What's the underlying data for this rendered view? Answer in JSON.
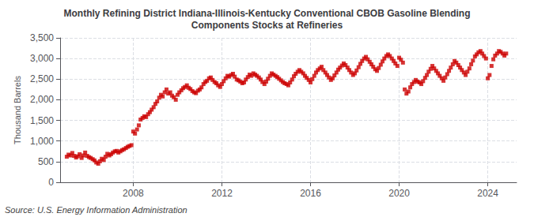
{
  "chart_data": {
    "type": "scatter",
    "title": "Monthly Refining District Indiana-Illinois-Kentucky Conventional CBOB Gasoline Blending\nComponents Stocks at Refineries",
    "ylabel": "Thousand Barrels",
    "annotations": [
      "Source: U.S. Energy Information Administration"
    ],
    "color": "#cc0000",
    "marker": "square",
    "grid": true,
    "xlim": [
      2004.7,
      2025.3
    ],
    "xticks": [
      2008,
      2012,
      2016,
      2020,
      2024
    ],
    "ylim": [
      0,
      3500
    ],
    "yticks": [
      0,
      500,
      {
        "value": 1000,
        "label": "1,000"
      },
      {
        "value": 1500,
        "label": "1,500"
      },
      {
        "value": 2000,
        "label": "2,000"
      },
      {
        "value": 2500,
        "label": "2,500"
      },
      {
        "value": 3000,
        "label": "3,000"
      },
      {
        "value": 3500,
        "label": "3,500"
      }
    ],
    "x": [
      2005.0,
      2005.08,
      2005.17,
      2005.25,
      2005.33,
      2005.42,
      2005.5,
      2005.58,
      2005.67,
      2005.75,
      2005.83,
      2005.92,
      2006.0,
      2006.08,
      2006.17,
      2006.25,
      2006.33,
      2006.42,
      2006.5,
      2006.58,
      2006.67,
      2006.75,
      2006.83,
      2006.92,
      2007.0,
      2007.08,
      2007.17,
      2007.25,
      2007.33,
      2007.42,
      2007.5,
      2007.58,
      2007.67,
      2007.75,
      2007.83,
      2007.92,
      2008.0,
      2008.08,
      2008.17,
      2008.25,
      2008.33,
      2008.42,
      2008.5,
      2008.58,
      2008.67,
      2008.75,
      2008.83,
      2008.92,
      2009.0,
      2009.08,
      2009.17,
      2009.25,
      2009.33,
      2009.42,
      2009.5,
      2009.58,
      2009.67,
      2009.75,
      2009.83,
      2009.92,
      2010.0,
      2010.08,
      2010.17,
      2010.25,
      2010.33,
      2010.42,
      2010.5,
      2010.58,
      2010.67,
      2010.75,
      2010.83,
      2010.92,
      2011.0,
      2011.08,
      2011.17,
      2011.25,
      2011.33,
      2011.42,
      2011.5,
      2011.58,
      2011.67,
      2011.75,
      2011.83,
      2011.92,
      2012.0,
      2012.08,
      2012.17,
      2012.25,
      2012.33,
      2012.42,
      2012.5,
      2012.58,
      2012.67,
      2012.75,
      2012.83,
      2012.92,
      2013.0,
      2013.08,
      2013.17,
      2013.25,
      2013.33,
      2013.42,
      2013.5,
      2013.58,
      2013.67,
      2013.75,
      2013.83,
      2013.92,
      2014.0,
      2014.08,
      2014.17,
      2014.25,
      2014.33,
      2014.42,
      2014.5,
      2014.58,
      2014.67,
      2014.75,
      2014.83,
      2014.92,
      2015.0,
      2015.08,
      2015.17,
      2015.25,
      2015.33,
      2015.42,
      2015.5,
      2015.58,
      2015.67,
      2015.75,
      2015.83,
      2015.92,
      2016.0,
      2016.08,
      2016.17,
      2016.25,
      2016.33,
      2016.42,
      2016.5,
      2016.58,
      2016.67,
      2016.75,
      2016.83,
      2016.92,
      2017.0,
      2017.08,
      2017.17,
      2017.25,
      2017.33,
      2017.42,
      2017.5,
      2017.58,
      2017.67,
      2017.75,
      2017.83,
      2017.92,
      2018.0,
      2018.08,
      2018.17,
      2018.25,
      2018.33,
      2018.42,
      2018.5,
      2018.58,
      2018.67,
      2018.75,
      2018.83,
      2018.92,
      2019.0,
      2019.08,
      2019.17,
      2019.25,
      2019.33,
      2019.42,
      2019.5,
      2019.58,
      2019.67,
      2019.75,
      2019.83,
      2019.92,
      2020.0,
      2020.08,
      2020.17,
      2020.25,
      2020.33,
      2020.42,
      2020.5,
      2020.58,
      2020.67,
      2020.75,
      2020.83,
      2020.92,
      2021.0,
      2021.08,
      2021.17,
      2021.25,
      2021.33,
      2021.42,
      2021.5,
      2021.58,
      2021.67,
      2021.75,
      2021.83,
      2021.92,
      2022.0,
      2022.08,
      2022.17,
      2022.25,
      2022.33,
      2022.42,
      2022.5,
      2022.58,
      2022.67,
      2022.75,
      2022.83,
      2022.92,
      2023.0,
      2023.08,
      2023.17,
      2023.25,
      2023.33,
      2023.42,
      2023.5,
      2023.58,
      2023.67,
      2023.75,
      2023.83,
      2023.92,
      2024.0,
      2024.08,
      2024.17,
      2024.25,
      2024.33,
      2024.42,
      2024.5,
      2024.58,
      2024.67,
      2024.75,
      2024.83
    ],
    "values": [
      620,
      670,
      650,
      710,
      640,
      600,
      630,
      680,
      590,
      650,
      720,
      640,
      610,
      590,
      560,
      530,
      480,
      450,
      510,
      570,
      540,
      620,
      690,
      650,
      680,
      720,
      750,
      760,
      720,
      750,
      780,
      800,
      830,
      860,
      880,
      900,
      1230,
      1180,
      1280,
      1380,
      1520,
      1560,
      1600,
      1580,
      1650,
      1700,
      1760,
      1820,
      1900,
      1960,
      2050,
      2120,
      2080,
      2180,
      2250,
      2150,
      2180,
      2100,
      2060,
      2000,
      2120,
      2180,
      2230,
      2280,
      2310,
      2350,
      2290,
      2260,
      2210,
      2180,
      2160,
      2220,
      2250,
      2300,
      2380,
      2430,
      2460,
      2520,
      2540,
      2480,
      2430,
      2400,
      2350,
      2310,
      2380,
      2450,
      2520,
      2580,
      2560,
      2600,
      2630,
      2560,
      2490,
      2470,
      2440,
      2400,
      2420,
      2490,
      2550,
      2610,
      2580,
      2640,
      2610,
      2580,
      2540,
      2490,
      2430,
      2380,
      2440,
      2510,
      2580,
      2640,
      2610,
      2580,
      2550,
      2510,
      2470,
      2430,
      2400,
      2380,
      2350,
      2420,
      2490,
      2570,
      2630,
      2680,
      2720,
      2680,
      2640,
      2580,
      2530,
      2480,
      2420,
      2500,
      2580,
      2660,
      2720,
      2760,
      2800,
      2720,
      2660,
      2600,
      2540,
      2480,
      2520,
      2590,
      2660,
      2730,
      2780,
      2830,
      2880,
      2840,
      2780,
      2720,
      2660,
      2600,
      2640,
      2710,
      2790,
      2870,
      2940,
      3000,
      3040,
      2980,
      2920,
      2860,
      2800,
      2740,
      2700,
      2770,
      2850,
      2930,
      3000,
      3060,
      3100,
      3060,
      3000,
      2940,
      2880,
      2820,
      3020,
      2970,
      2900,
      2250,
      2150,
      2200,
      2300,
      2380,
      2430,
      2480,
      2440,
      2420,
      2380,
      2450,
      2530,
      2600,
      2680,
      2750,
      2820,
      2760,
      2700,
      2640,
      2580,
      2520,
      2460,
      2540,
      2620,
      2700,
      2780,
      2860,
      2940,
      2900,
      2840,
      2780,
      2720,
      2660,
      2600,
      2680,
      2760,
      2860,
      2950,
      3050,
      3100,
      3150,
      3180,
      3120,
      3060,
      3000,
      2520,
      2600,
      2820,
      2980,
      3070,
      3120,
      3180,
      3160,
      3120,
      3070,
      3120
    ]
  }
}
